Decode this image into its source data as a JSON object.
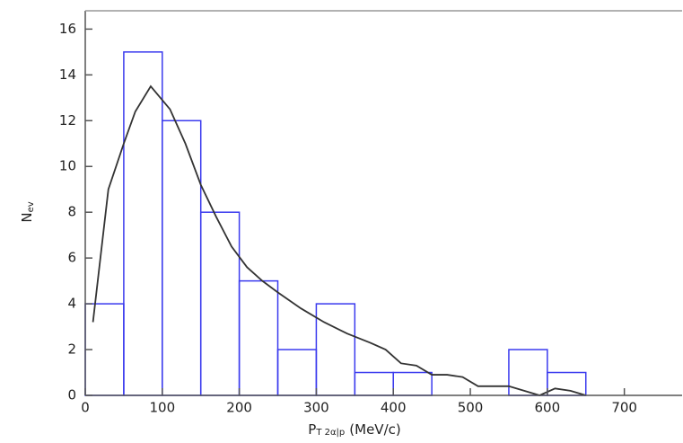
{
  "chart_data": {
    "type": "histogram",
    "bins": [
      0,
      50,
      100,
      150,
      200,
      250,
      300,
      350,
      400,
      450,
      500,
      550,
      600,
      650
    ],
    "counts": [
      4,
      15,
      12,
      8,
      5,
      2,
      4,
      1,
      1,
      0,
      0,
      2,
      1
    ],
    "hist_color": "#3a3aee",
    "line": {
      "color": "#333333",
      "x": [
        10,
        30,
        50,
        65,
        85,
        110,
        130,
        150,
        170,
        190,
        210,
        230,
        250,
        280,
        310,
        340,
        370,
        390,
        410,
        430,
        450,
        470,
        490,
        510,
        530,
        550,
        570,
        590,
        610,
        630,
        650
      ],
      "values": [
        3.2,
        9,
        11,
        12.4,
        13.5,
        12.5,
        11,
        9.2,
        7.8,
        6.5,
        5.6,
        5,
        4.5,
        3.8,
        3.2,
        2.7,
        2.3,
        2.0,
        1.4,
        1.3,
        0.9,
        0.9,
        0.8,
        0.4,
        0.4,
        0.4,
        0.2,
        0,
        0.3,
        0.2,
        0
      ]
    },
    "xlabel": {
      "main": "P",
      "sub": "T 2α|p",
      "rest": "(MeV/c)"
    },
    "ylabel": {
      "main": "N",
      "sub": "ev"
    },
    "xlim": [
      0,
      775
    ],
    "ylim": [
      0,
      16.8
    ],
    "xticks": [
      0,
      100,
      200,
      300,
      400,
      500,
      600,
      700
    ],
    "yticks": [
      0,
      2,
      4,
      6,
      8,
      10,
      12,
      14,
      16
    ]
  }
}
